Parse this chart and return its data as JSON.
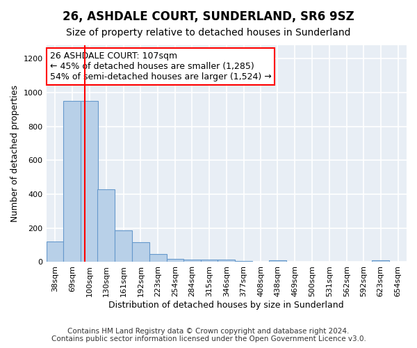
{
  "title": "26, ASHDALE COURT, SUNDERLAND, SR6 9SZ",
  "subtitle": "Size of property relative to detached houses in Sunderland",
  "xlabel": "Distribution of detached houses by size in Sunderland",
  "ylabel": "Number of detached properties",
  "footer_line1": "Contains HM Land Registry data © Crown copyright and database right 2024.",
  "footer_line2": "Contains public sector information licensed under the Open Government Licence v3.0.",
  "annotation_line1": "26 ASHDALE COURT: 107sqm",
  "annotation_line2": "← 45% of detached houses are smaller (1,285)",
  "annotation_line3": "54% of semi-detached houses are larger (1,524) →",
  "property_sqm": 107,
  "bin_labels": [
    "38sqm",
    "69sqm",
    "100sqm",
    "130sqm",
    "161sqm",
    "192sqm",
    "223sqm",
    "254sqm",
    "284sqm",
    "315sqm",
    "346sqm",
    "377sqm",
    "408sqm",
    "438sqm",
    "469sqm",
    "500sqm",
    "531sqm",
    "562sqm",
    "592sqm",
    "623sqm",
    "654sqm"
  ],
  "bin_edges": [
    38,
    69,
    100,
    130,
    161,
    192,
    223,
    254,
    284,
    315,
    346,
    377,
    408,
    438,
    469,
    500,
    531,
    562,
    592,
    623,
    654
  ],
  "bin_width": 31,
  "bar_heights": [
    120,
    950,
    950,
    430,
    185,
    115,
    48,
    18,
    14,
    15,
    14,
    8,
    0,
    10,
    0,
    0,
    0,
    0,
    0,
    10,
    0
  ],
  "bar_color": "#b8d0e8",
  "bar_edge_color": "#6699cc",
  "red_line_x": 107,
  "ylim": [
    0,
    1280
  ],
  "yticks": [
    0,
    200,
    400,
    600,
    800,
    1000,
    1200
  ],
  "background_color": "#e8eef5",
  "grid_color": "#ffffff",
  "fig_background": "#ffffff",
  "title_fontsize": 12,
  "subtitle_fontsize": 10,
  "axis_label_fontsize": 9,
  "tick_fontsize": 8,
  "annotation_fontsize": 9,
  "footer_fontsize": 7.5
}
